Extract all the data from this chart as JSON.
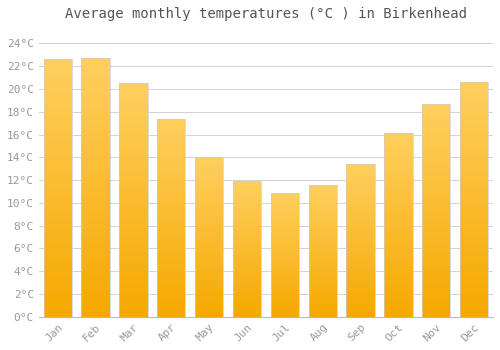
{
  "title": "Average monthly temperatures (°C ) in Birkenhead",
  "months": [
    "Jan",
    "Feb",
    "Mar",
    "Apr",
    "May",
    "Jun",
    "Jul",
    "Aug",
    "Sep",
    "Oct",
    "Nov",
    "Dec"
  ],
  "values": [
    22.6,
    22.7,
    20.5,
    17.4,
    14.0,
    11.9,
    10.9,
    11.6,
    13.4,
    16.1,
    18.7,
    20.6
  ],
  "bar_color_top": "#FFD060",
  "bar_color_bottom": "#F5A800",
  "bar_color_edge": "#CCCCCC",
  "background_color": "#FFFFFF",
  "plot_bg_color": "#FFFFFF",
  "grid_color": "#CCCCCC",
  "ytick_labels": [
    "0°C",
    "2°C",
    "4°C",
    "6°C",
    "8°C",
    "10°C",
    "12°C",
    "14°C",
    "16°C",
    "18°C",
    "20°C",
    "22°C",
    "24°C"
  ],
  "ytick_values": [
    0,
    2,
    4,
    6,
    8,
    10,
    12,
    14,
    16,
    18,
    20,
    22,
    24
  ],
  "ylim": [
    0,
    25.5
  ],
  "title_fontsize": 10,
  "tick_fontsize": 8,
  "tick_color": "#999999",
  "label_font": "monospace",
  "bar_width": 0.75
}
